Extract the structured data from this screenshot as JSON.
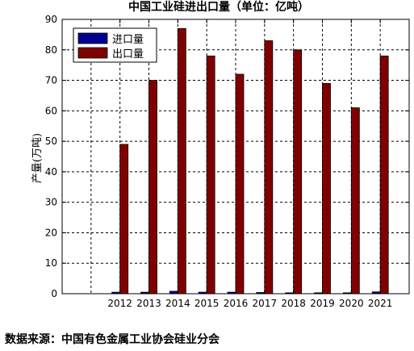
{
  "chart_data": {
    "type": "bar",
    "title": "中国工业硅进出口量（单位：亿吨）",
    "xlabel": "",
    "ylabel": "产量(万吨)",
    "categories": [
      "2012",
      "2013",
      "2014",
      "2015",
      "2016",
      "2017",
      "2018",
      "2019",
      "2020",
      "2021"
    ],
    "x_range": [
      2010,
      2022
    ],
    "ylim": [
      0,
      90
    ],
    "yticks": [
      0,
      10,
      20,
      30,
      40,
      50,
      60,
      70,
      80,
      90
    ],
    "grid": true,
    "legend_position": "top-left",
    "series": [
      {
        "name": "进口量",
        "color": "#00008f",
        "values": [
          0.5,
          0.5,
          0.8,
          0.5,
          0.5,
          0.4,
          0.3,
          0.3,
          0.3,
          0.6
        ]
      },
      {
        "name": "出口量",
        "color": "#800000",
        "values": [
          49,
          70,
          87,
          78,
          72,
          83,
          80,
          69,
          61,
          78
        ]
      }
    ]
  },
  "source_text": "数据来源：中国有色金属工业协会硅业分会"
}
